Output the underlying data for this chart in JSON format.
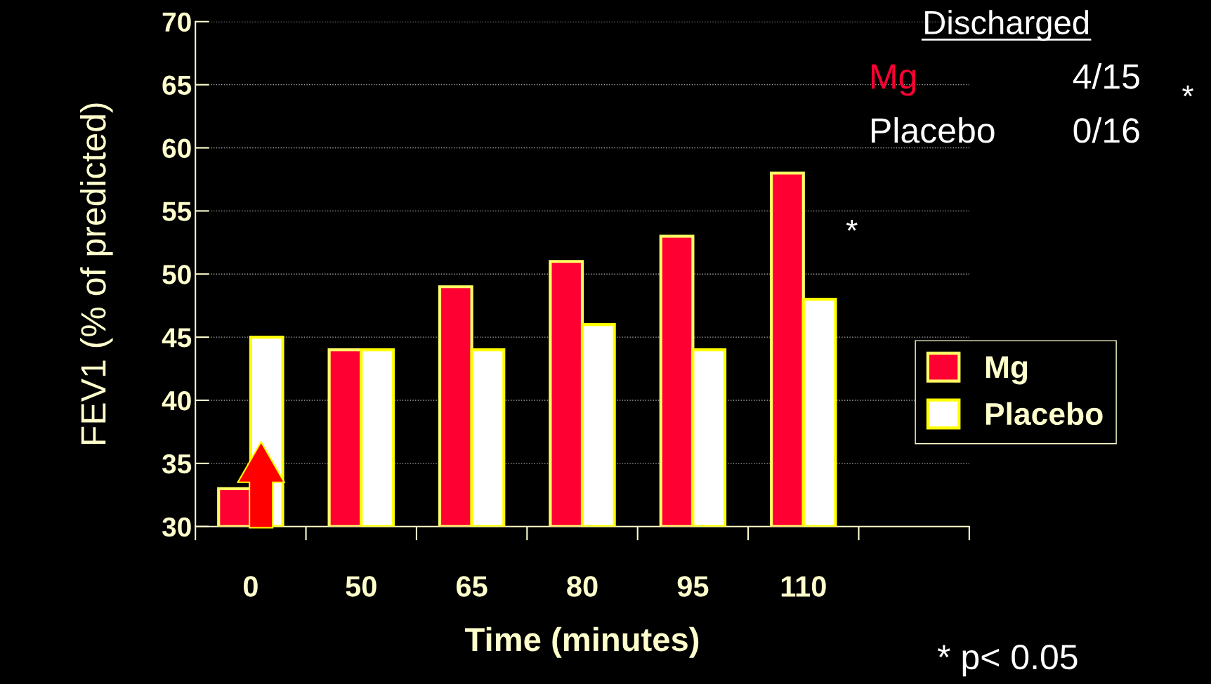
{
  "chart_data": {
    "type": "bar",
    "xlabel": "Time (minutes)",
    "ylabel": "FEV1 (% of predicted)",
    "categories": [
      "0",
      "50",
      "65",
      "80",
      "95",
      "110",
      null
    ],
    "series": [
      {
        "name": "Mg",
        "color": "#ff0033",
        "values": [
          33,
          44,
          49,
          51,
          53,
          58,
          null
        ]
      },
      {
        "name": "Placebo",
        "color": "#ffffff",
        "values": [
          45,
          44,
          44,
          46,
          44,
          48,
          null
        ]
      }
    ],
    "ylim": [
      30,
      70
    ],
    "yticks": [
      30,
      35,
      40,
      45,
      50,
      55,
      60,
      65,
      70
    ],
    "grid": "y",
    "legend": "right",
    "annotations": [
      "Discharged",
      "Mg",
      "4/15",
      "Placebo",
      "0/16",
      "*",
      "*",
      "* p< 0.05"
    ]
  }
}
